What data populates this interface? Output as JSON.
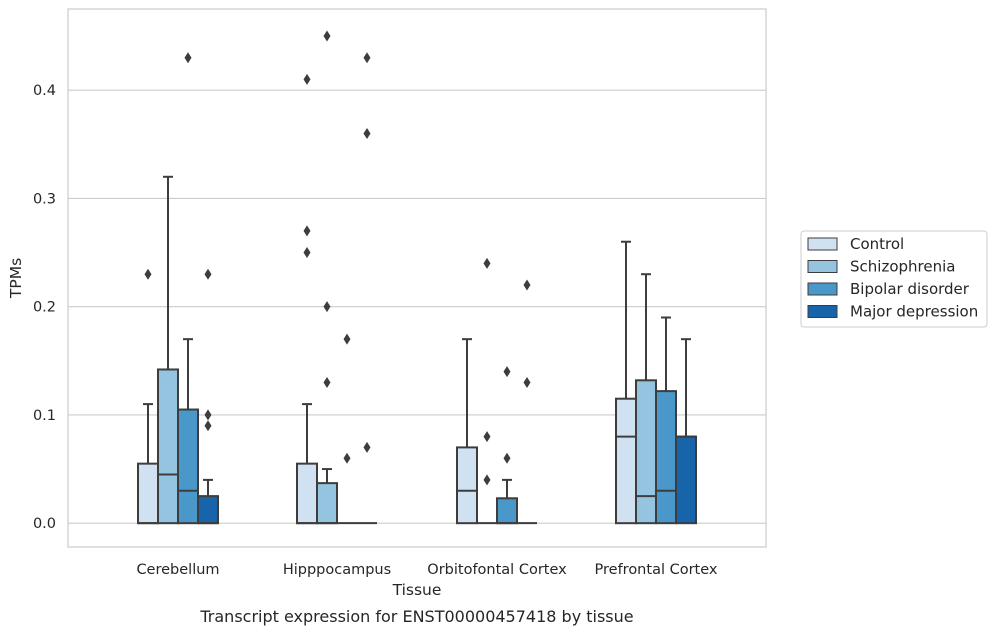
{
  "caption": "Transcript expression for ENST00000457418 by tissue",
  "chart_data": {
    "type": "box",
    "xlabel": "Tissue",
    "ylabel": "TPMs",
    "ylim": [
      -0.022,
      0.475
    ],
    "yticks": [
      0.0,
      0.1,
      0.2,
      0.3,
      0.4
    ],
    "ytick_labels": [
      "0.0",
      "0.1",
      "0.2",
      "0.3",
      "0.4"
    ],
    "grid": "horizontal",
    "legend_position": "right",
    "categories": [
      "Cerebellum",
      "Hipppocampus",
      "Orbitofontal Cortex",
      "Prefrontal Cortex"
    ],
    "series": [
      {
        "name": "Control",
        "color": "#d0e1f2"
      },
      {
        "name": "Schizophrenia",
        "color": "#94c4df"
      },
      {
        "name": "Bipolar disorder",
        "color": "#4a98c9"
      },
      {
        "name": "Major depression",
        "color": "#1764ab"
      }
    ],
    "boxes": [
      [
        {
          "q1": 0.0,
          "median": 0.0,
          "q3": 0.055,
          "whisker_low": 0.0,
          "whisker_high": 0.11,
          "outliers": [
            0.23
          ]
        },
        {
          "q1": 0.0,
          "median": 0.045,
          "q3": 0.142,
          "whisker_low": 0.0,
          "whisker_high": 0.32,
          "outliers": []
        },
        {
          "q1": 0.0,
          "median": 0.03,
          "q3": 0.105,
          "whisker_low": 0.0,
          "whisker_high": 0.17,
          "outliers": [
            0.43
          ]
        },
        {
          "q1": 0.0,
          "median": 0.0,
          "q3": 0.025,
          "whisker_low": 0.0,
          "whisker_high": 0.04,
          "outliers": [
            0.09,
            0.1,
            0.23
          ]
        }
      ],
      [
        {
          "q1": 0.0,
          "median": 0.0,
          "q3": 0.055,
          "whisker_low": 0.0,
          "whisker_high": 0.11,
          "outliers": [
            0.25,
            0.27,
            0.41
          ]
        },
        {
          "q1": 0.0,
          "median": 0.0,
          "q3": 0.037,
          "whisker_low": 0.0,
          "whisker_high": 0.05,
          "outliers": [
            0.13,
            0.2,
            0.45
          ]
        },
        {
          "q1": 0.0,
          "median": 0.0,
          "q3": 0.0,
          "whisker_low": 0.0,
          "whisker_high": 0.0,
          "outliers": [
            0.06,
            0.17
          ]
        },
        {
          "q1": 0.0,
          "median": 0.0,
          "q3": 0.0,
          "whisker_low": 0.0,
          "whisker_high": 0.0,
          "outliers": [
            0.07,
            0.36,
            0.43
          ]
        }
      ],
      [
        {
          "q1": 0.0,
          "median": 0.03,
          "q3": 0.07,
          "whisker_low": 0.0,
          "whisker_high": 0.17,
          "outliers": []
        },
        {
          "q1": 0.0,
          "median": 0.0,
          "q3": 0.0,
          "whisker_low": 0.0,
          "whisker_high": 0.0,
          "outliers": [
            0.04,
            0.08,
            0.24
          ]
        },
        {
          "q1": 0.0,
          "median": 0.0,
          "q3": 0.023,
          "whisker_low": 0.0,
          "whisker_high": 0.04,
          "outliers": [
            0.06,
            0.14
          ]
        },
        {
          "q1": 0.0,
          "median": 0.0,
          "q3": 0.0,
          "whisker_low": 0.0,
          "whisker_high": 0.0,
          "outliers": [
            0.13,
            0.22
          ]
        }
      ],
      [
        {
          "q1": 0.0,
          "median": 0.08,
          "q3": 0.115,
          "whisker_low": 0.0,
          "whisker_high": 0.26,
          "outliers": []
        },
        {
          "q1": 0.0,
          "median": 0.025,
          "q3": 0.132,
          "whisker_low": 0.0,
          "whisker_high": 0.23,
          "outliers": []
        },
        {
          "q1": 0.0,
          "median": 0.03,
          "q3": 0.122,
          "whisker_low": 0.0,
          "whisker_high": 0.19,
          "outliers": []
        },
        {
          "q1": 0.0,
          "median": 0.08,
          "q3": 0.08,
          "whisker_low": 0.0,
          "whisker_high": 0.17,
          "outliers": []
        }
      ]
    ]
  }
}
